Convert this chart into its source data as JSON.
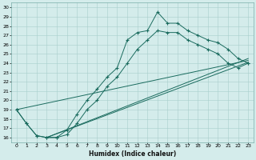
{
  "title": "",
  "xlabel": "Humidex (Indice chaleur)",
  "ylabel": "",
  "xlim": [
    -0.5,
    23.5
  ],
  "ylim": [
    15.5,
    30.5
  ],
  "xticks": [
    0,
    1,
    2,
    3,
    4,
    5,
    6,
    7,
    8,
    9,
    10,
    11,
    12,
    13,
    14,
    15,
    16,
    17,
    18,
    19,
    20,
    21,
    22,
    23
  ],
  "yticks": [
    16,
    17,
    18,
    19,
    20,
    21,
    22,
    23,
    24,
    25,
    26,
    27,
    28,
    29,
    30
  ],
  "bg_color": "#d4eceb",
  "grid_color": "#a8cecc",
  "line_color": "#1a6b5e",
  "curve1_x": [
    0,
    1,
    2,
    3,
    4,
    5,
    6,
    7,
    8,
    9,
    10,
    11,
    12,
    13,
    14,
    15,
    16,
    17,
    18,
    19,
    20,
    21,
    22,
    23
  ],
  "curve1_y": [
    19.0,
    17.5,
    16.2,
    16.0,
    16.0,
    16.8,
    18.5,
    20.0,
    21.2,
    22.5,
    23.5,
    26.5,
    27.3,
    27.5,
    29.5,
    28.3,
    28.3,
    27.5,
    27.0,
    26.5,
    26.2,
    25.5,
    24.5,
    24.0
  ],
  "curve2_x": [
    0,
    1,
    2,
    3,
    4,
    5,
    6,
    7,
    8,
    9,
    10,
    11,
    12,
    13,
    14,
    15,
    16,
    17,
    18,
    19,
    20,
    21,
    22,
    23
  ],
  "curve2_y": [
    19.0,
    17.5,
    16.2,
    16.0,
    16.0,
    16.3,
    17.5,
    19.0,
    20.0,
    21.5,
    22.5,
    24.0,
    25.5,
    26.5,
    27.5,
    27.3,
    27.3,
    26.5,
    26.0,
    25.5,
    25.0,
    24.0,
    23.5,
    24.0
  ],
  "line1_x": [
    0.0,
    23.0
  ],
  "line1_y": [
    19.0,
    24.3
  ],
  "line2_x": [
    3.0,
    23.0
  ],
  "line2_y": [
    16.0,
    24.1
  ],
  "line3_x": [
    3.0,
    23.0
  ],
  "line3_y": [
    16.0,
    24.5
  ]
}
